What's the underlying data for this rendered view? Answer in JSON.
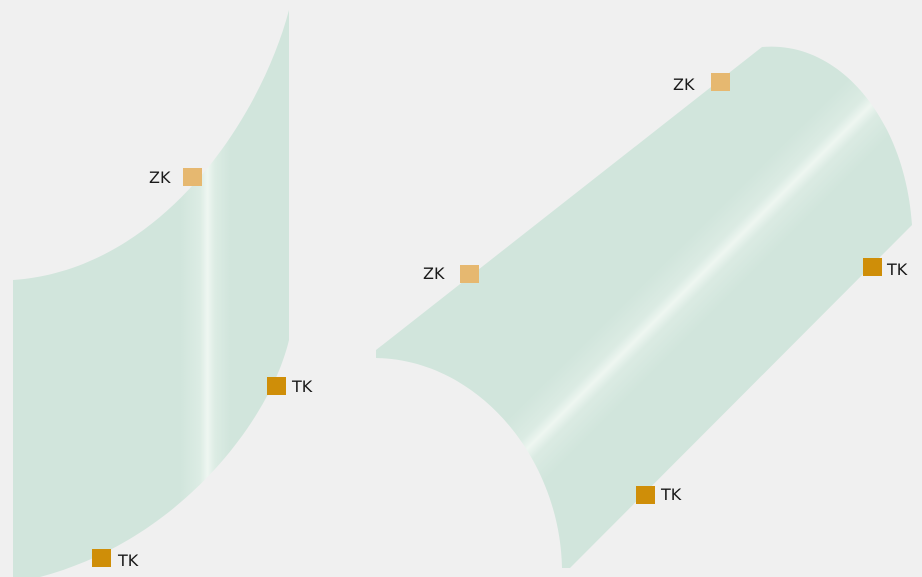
{
  "colors": {
    "background": "#f0f0f0",
    "surface": "#d1e5dc",
    "highlight": "#eef6f1",
    "marker_light": "#e6b870",
    "marker_dark": "#cf8e08"
  },
  "left_panel": {
    "markers": [
      {
        "label": "ZK",
        "shade": "light"
      },
      {
        "label": "TK",
        "shade": "dark"
      },
      {
        "label": "TK",
        "shade": "dark"
      }
    ]
  },
  "right_panel": {
    "markers": [
      {
        "label": "ZK",
        "shade": "light"
      },
      {
        "label": "ZK",
        "shade": "light"
      },
      {
        "label": "TK",
        "shade": "dark"
      },
      {
        "label": "TK",
        "shade": "dark"
      }
    ]
  }
}
